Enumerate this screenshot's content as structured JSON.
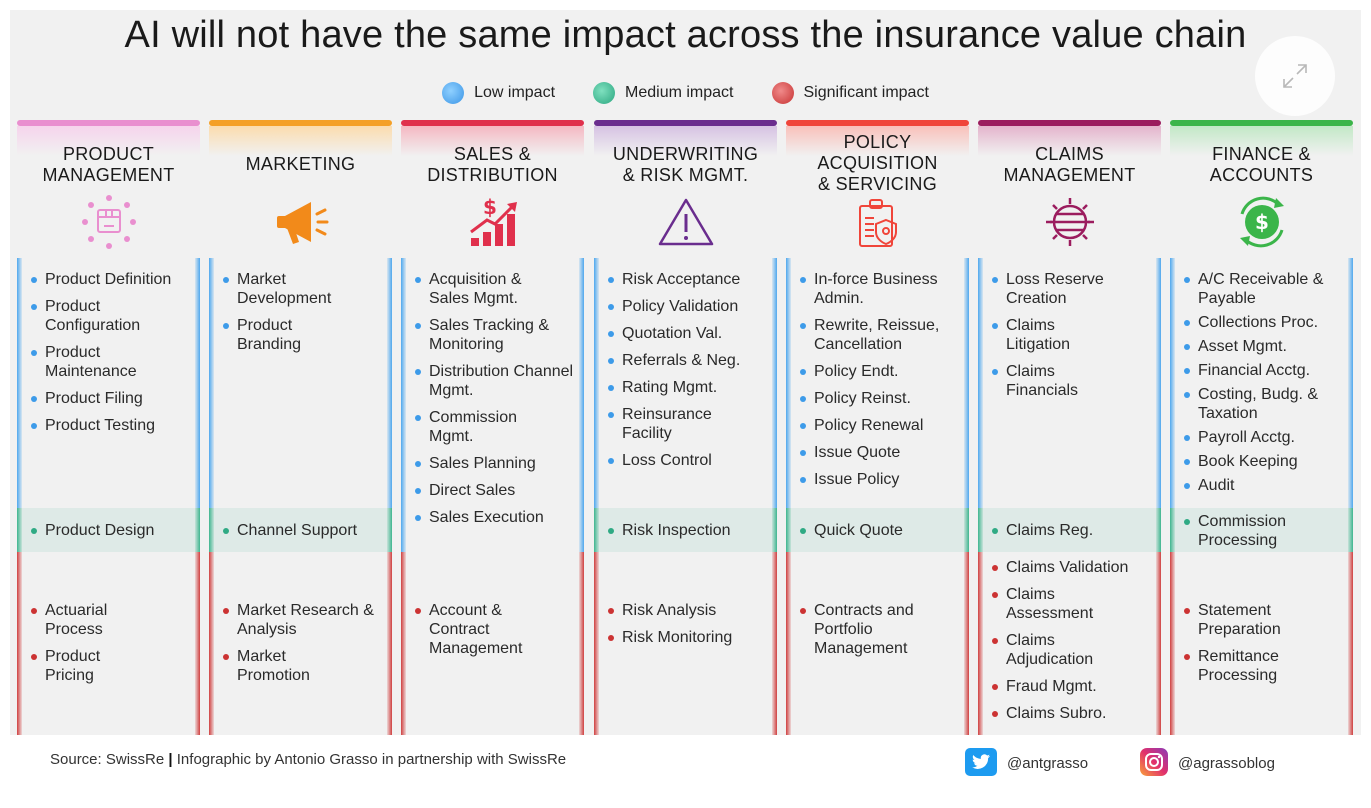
{
  "title": "AI will not have the same impact across the insurance value chain",
  "legend": [
    {
      "label": "Low impact",
      "color": "#4fa8ee"
    },
    {
      "label": "Medium impact",
      "color": "#3fb58f"
    },
    {
      "label": "Significant impact",
      "color": "#d04040"
    }
  ],
  "columns": [
    {
      "heading": [
        "PRODUCT",
        "MANAGEMENT"
      ],
      "accent": "#e98fcf",
      "icon": "product-box-icon",
      "low": [
        "Product Definition",
        "Product Configuration",
        "Product Maintenance",
        "Product Filing",
        "Product Testing"
      ],
      "medium": [
        "Product Design"
      ],
      "significant": [
        "Actuarial Process",
        "Product Pricing"
      ]
    },
    {
      "heading": [
        "MARKETING"
      ],
      "accent": "#f4a027",
      "icon": "megaphone-icon",
      "low": [
        "Market Development",
        "Product Branding"
      ],
      "medium": [
        "Channel Support"
      ],
      "significant": [
        "Market Research & Analysis",
        "Market Promotion"
      ]
    },
    {
      "heading": [
        "SALES &",
        "DISTRIBUTION"
      ],
      "accent": "#e0304c",
      "icon": "sales-growth-icon",
      "low": [
        "Acquisition & Sales Mgmt.",
        "Sales Tracking & Monitoring",
        "Distribution Channel Mgmt.",
        "Commission Mgmt.",
        "Sales Planning",
        "Direct Sales",
        "Sales Execution"
      ],
      "medium": [],
      "significant": [
        "Account & Contract Management"
      ]
    },
    {
      "heading": [
        "UNDERWRITING",
        "& RISK MGMT."
      ],
      "accent": "#6a2d8e",
      "icon": "warning-triangle-icon",
      "low": [
        "Risk Acceptance",
        "Policy Validation",
        "Quotation Val.",
        "Referrals & Neg.",
        "Rating Mgmt.",
        "Reinsurance Facility",
        "Loss Control"
      ],
      "medium": [
        "Risk Inspection"
      ],
      "significant": [
        "Risk Analysis",
        "Risk Monitoring"
      ]
    },
    {
      "heading": [
        "POLICY",
        "ACQUISITION",
        "& SERVICING"
      ],
      "accent": "#f0453a",
      "icon": "policy-document-icon",
      "low": [
        "In-force Business Admin.",
        "Rewrite, Reissue, Cancellation",
        "Policy Endt.",
        "Policy Reinst.",
        "Policy Renewal",
        "Issue Quote",
        "Issue Policy"
      ],
      "medium": [
        "Quick Quote"
      ],
      "significant": [
        "Contracts and Portfolio Management"
      ]
    },
    {
      "heading": [
        "CLAIMS",
        "MANAGEMENT"
      ],
      "accent": "#9b1c5e",
      "icon": "claims-gear-icon",
      "low": [
        "Loss Reserve Creation",
        "Claims Litigation",
        "Claims Financials"
      ],
      "medium": [
        "Claims Reg."
      ],
      "significant": [
        "Claims Validation",
        "Claims Assessment",
        "Claims Adjudication",
        "Fraud Mgmt.",
        "Claims Subro."
      ]
    },
    {
      "heading": [
        "FINANCE &",
        "ACCOUNTS"
      ],
      "accent": "#3bb54a",
      "icon": "dollar-cycle-icon",
      "low": [
        "A/C Receivable & Payable",
        "Collections Proc.",
        "Asset Mgmt.",
        "Financial Acctg.",
        "Costing, Budg. & Taxation",
        "Payroll Acctg.",
        "Book Keeping",
        "Audit"
      ],
      "medium": [
        "Commission Processing"
      ],
      "significant": [
        "Statement Preparation",
        "Remittance Processing"
      ]
    }
  ],
  "footer": {
    "source_prefix": "Source: SwissRe",
    "separator": "|",
    "source_suffix": "Infographic by Antonio Grasso in partnership with SwissRe",
    "twitter": "@antgrasso",
    "instagram": "@agrassoblog"
  }
}
